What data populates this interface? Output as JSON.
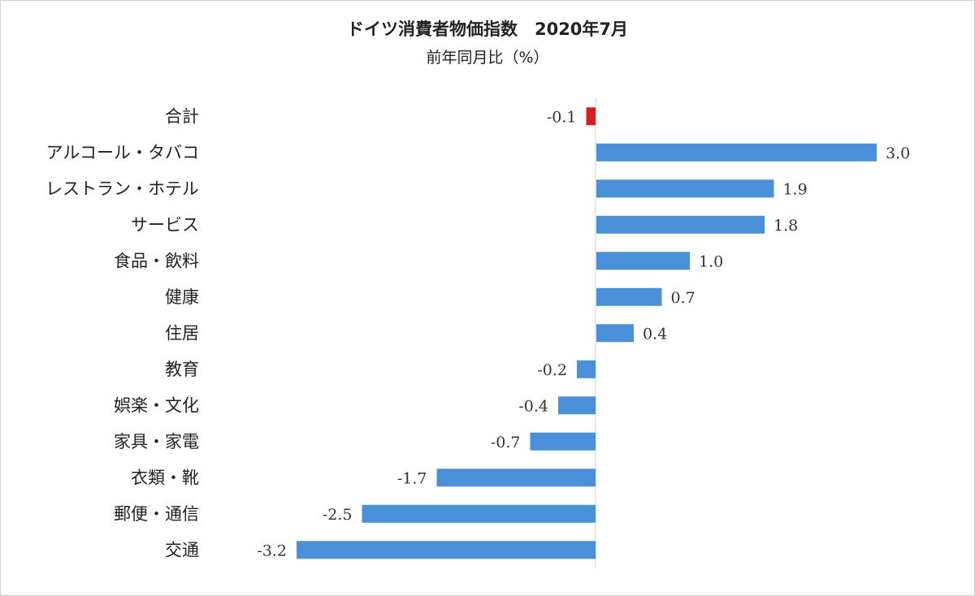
{
  "chart_data": {
    "type": "bar",
    "orientation": "horizontal",
    "title": "ドイツ消費者物価指数　2020年7月",
    "subtitle": "前年同月比（%）",
    "categories": [
      "合計",
      "アルコール・タバコ",
      "レストラン・ホテル",
      "サービス",
      "食品・飲料",
      "健康",
      "住居",
      "教育",
      "娯楽・文化",
      "家具・家電",
      "衣類・靴",
      "郵便・通信",
      "交通"
    ],
    "values": [
      -0.1,
      3.0,
      1.9,
      1.8,
      1.0,
      0.7,
      0.4,
      -0.2,
      -0.4,
      -0.7,
      -1.7,
      -2.5,
      -3.2
    ],
    "value_labels": [
      "-0.1",
      "3.0",
      "1.9",
      "1.8",
      "1.0",
      "0.7",
      "0.4",
      "-0.2",
      "-0.4",
      "-0.7",
      "-1.7",
      "-2.5",
      "-3.2"
    ],
    "xlim": [
      -3.2,
      3.0
    ],
    "grid": false,
    "legend": "none",
    "colors": {
      "default": "#4a90d9",
      "highlight": "#d62020",
      "axis": "#cfcfcf"
    },
    "highlight_index": 0
  }
}
